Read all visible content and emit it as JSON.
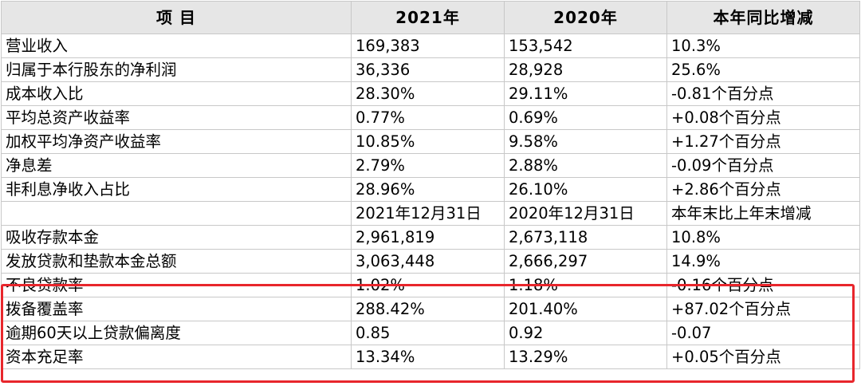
{
  "header": {
    "item": "项  目",
    "y2021": "2021年",
    "y2020": "2020年",
    "change": "本年同比增减"
  },
  "rows": [
    {
      "label": "营业收入",
      "v2021": "169,383",
      "v2020": "153,542",
      "change": "10.3%"
    },
    {
      "label": "归属于本行股东的净利润",
      "v2021": "36,336",
      "v2020": "28,928",
      "change": "25.6%"
    },
    {
      "label": "成本收入比",
      "v2021": "28.30%",
      "v2020": "29.11%",
      "change": "-0.81个百分点"
    },
    {
      "label": "平均总资产收益率",
      "v2021": "0.77%",
      "v2020": "0.69%",
      "change": "+0.08个百分点"
    },
    {
      "label": "加权平均净资产收益率",
      "v2021": "10.85%",
      "v2020": "9.58%",
      "change": "+1.27个百分点"
    },
    {
      "label": "净息差",
      "v2021": "2.79%",
      "v2020": "2.88%",
      "change": "-0.09个百分点"
    },
    {
      "label": "非利息净收入占比",
      "v2021": "28.96%",
      "v2020": "26.10%",
      "change": "+2.86个百分点"
    },
    {
      "label": "",
      "v2021": "2021年12月31日",
      "v2020": "2020年12月31日",
      "change": "本年末比上年末增减"
    },
    {
      "label": "吸收存款本金",
      "v2021": "2,961,819",
      "v2020": "2,673,118",
      "change": "10.8%"
    },
    {
      "label": "发放贷款和垫款本金总额",
      "v2021": "3,063,448",
      "v2020": "2,666,297",
      "change": "14.9%"
    },
    {
      "label": "不良贷款率",
      "v2021": "1.02%",
      "v2020": "1.18%",
      "change": "-0.16个百分点"
    },
    {
      "label": "拨备覆盖率",
      "v2021": "288.42%",
      "v2020": "201.40%",
      "change": "+87.02个百分点"
    },
    {
      "label": "逾期60天以上贷款偏离度",
      "v2021": "0.85",
      "v2020": "0.92",
      "change": "-0.07"
    },
    {
      "label": "资本充足率",
      "v2021": "13.34%",
      "v2020": "13.29%",
      "change": "+0.05个百分点"
    }
  ],
  "highlight_color": "#e8262c",
  "header_bg": "#e6e6e6"
}
